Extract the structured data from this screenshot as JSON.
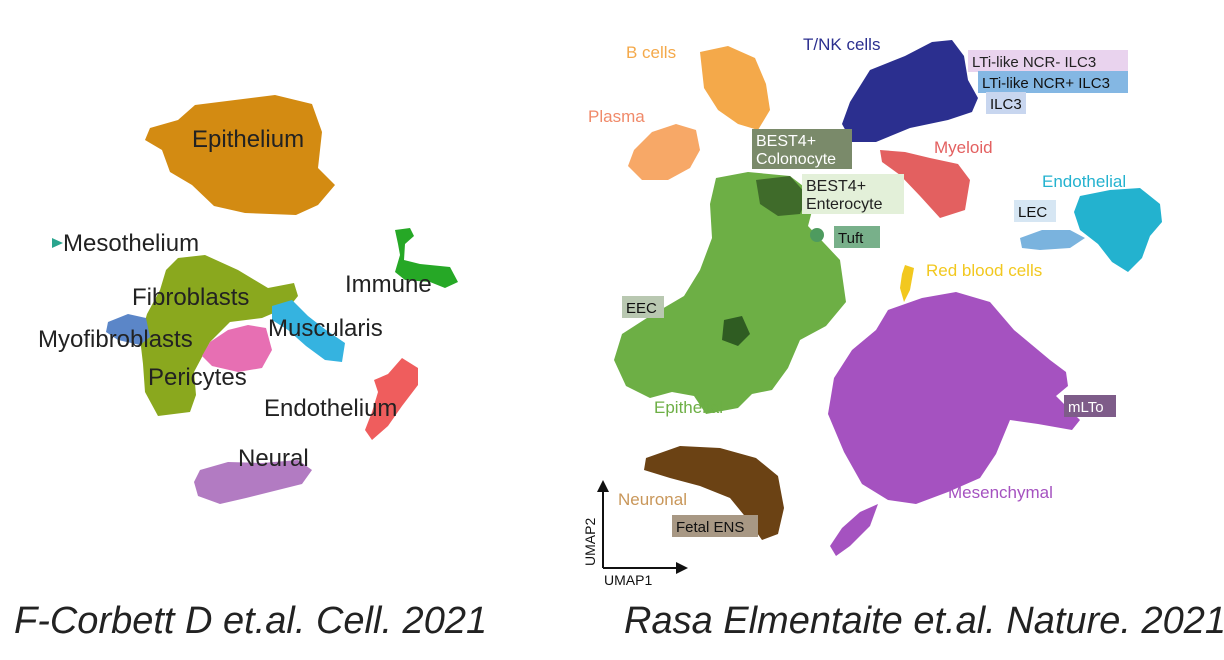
{
  "left_panel": {
    "labels": {
      "epithelium": "Epithelium",
      "mesothelium": "Mesothelium",
      "immune": "Immune",
      "fibroblasts": "Fibroblasts",
      "myofibroblasts": "Myofibroblasts",
      "muscularis": "Muscularis",
      "pericytes": "Pericytes",
      "endothelium": "Endothelium",
      "neural": "Neural"
    },
    "colors": {
      "epithelium": "#d38b12",
      "mesothelium": "#2aa58e",
      "immune": "#26a826",
      "fibroblasts": "#8aa81e",
      "myofibroblasts": "#5b86c8",
      "muscularis": "#35b3e0",
      "pericytes": "#e76fb3",
      "endothelium": "#ef5d5d",
      "neural": "#b27bc2"
    },
    "caption": "F-Corbett D et.al. Cell. 2021"
  },
  "right_panel": {
    "labels": {
      "b_cells": "B cells",
      "tnk": "T/NK cells",
      "lti_neg": "LTi-like NCR- ILC3",
      "lti_pos": "LTi-like NCR+ ILC3",
      "ilc3": "ILC3",
      "plasma": "Plasma",
      "best4_colono_1": "BEST4+",
      "best4_colono_2": "Colonocyte",
      "best4_entero_1": "BEST4+",
      "best4_entero_2": "Enterocyte",
      "myeloid": "Myeloid",
      "endothelial": "Endothelial",
      "lec": "LEC",
      "tuft": "Tuft",
      "rbc": "Red blood cells",
      "eec": "EEC",
      "epithelial": "Epithelial",
      "mlto": "mLTo",
      "neuronal": "Neuronal",
      "fetal_ens": "Fetal ENS",
      "mesenchymal": "Mesenchymal",
      "umap1": "UMAP1",
      "umap2": "UMAP2"
    },
    "colors": {
      "b_cells": "#f4a94a",
      "tnk": "#2b2f8f",
      "plasma": "#f7a867",
      "myeloid": "#e36060",
      "endothelial": "#23b2cf",
      "lec": "#7ab3de",
      "epithelial": "#6daf45",
      "rbc": "#f2c81f",
      "mesenchymal": "#a552c0",
      "neuronal": "#6b4214"
    },
    "caption": "Rasa Elmentaite et.al. Nature. 2021"
  }
}
